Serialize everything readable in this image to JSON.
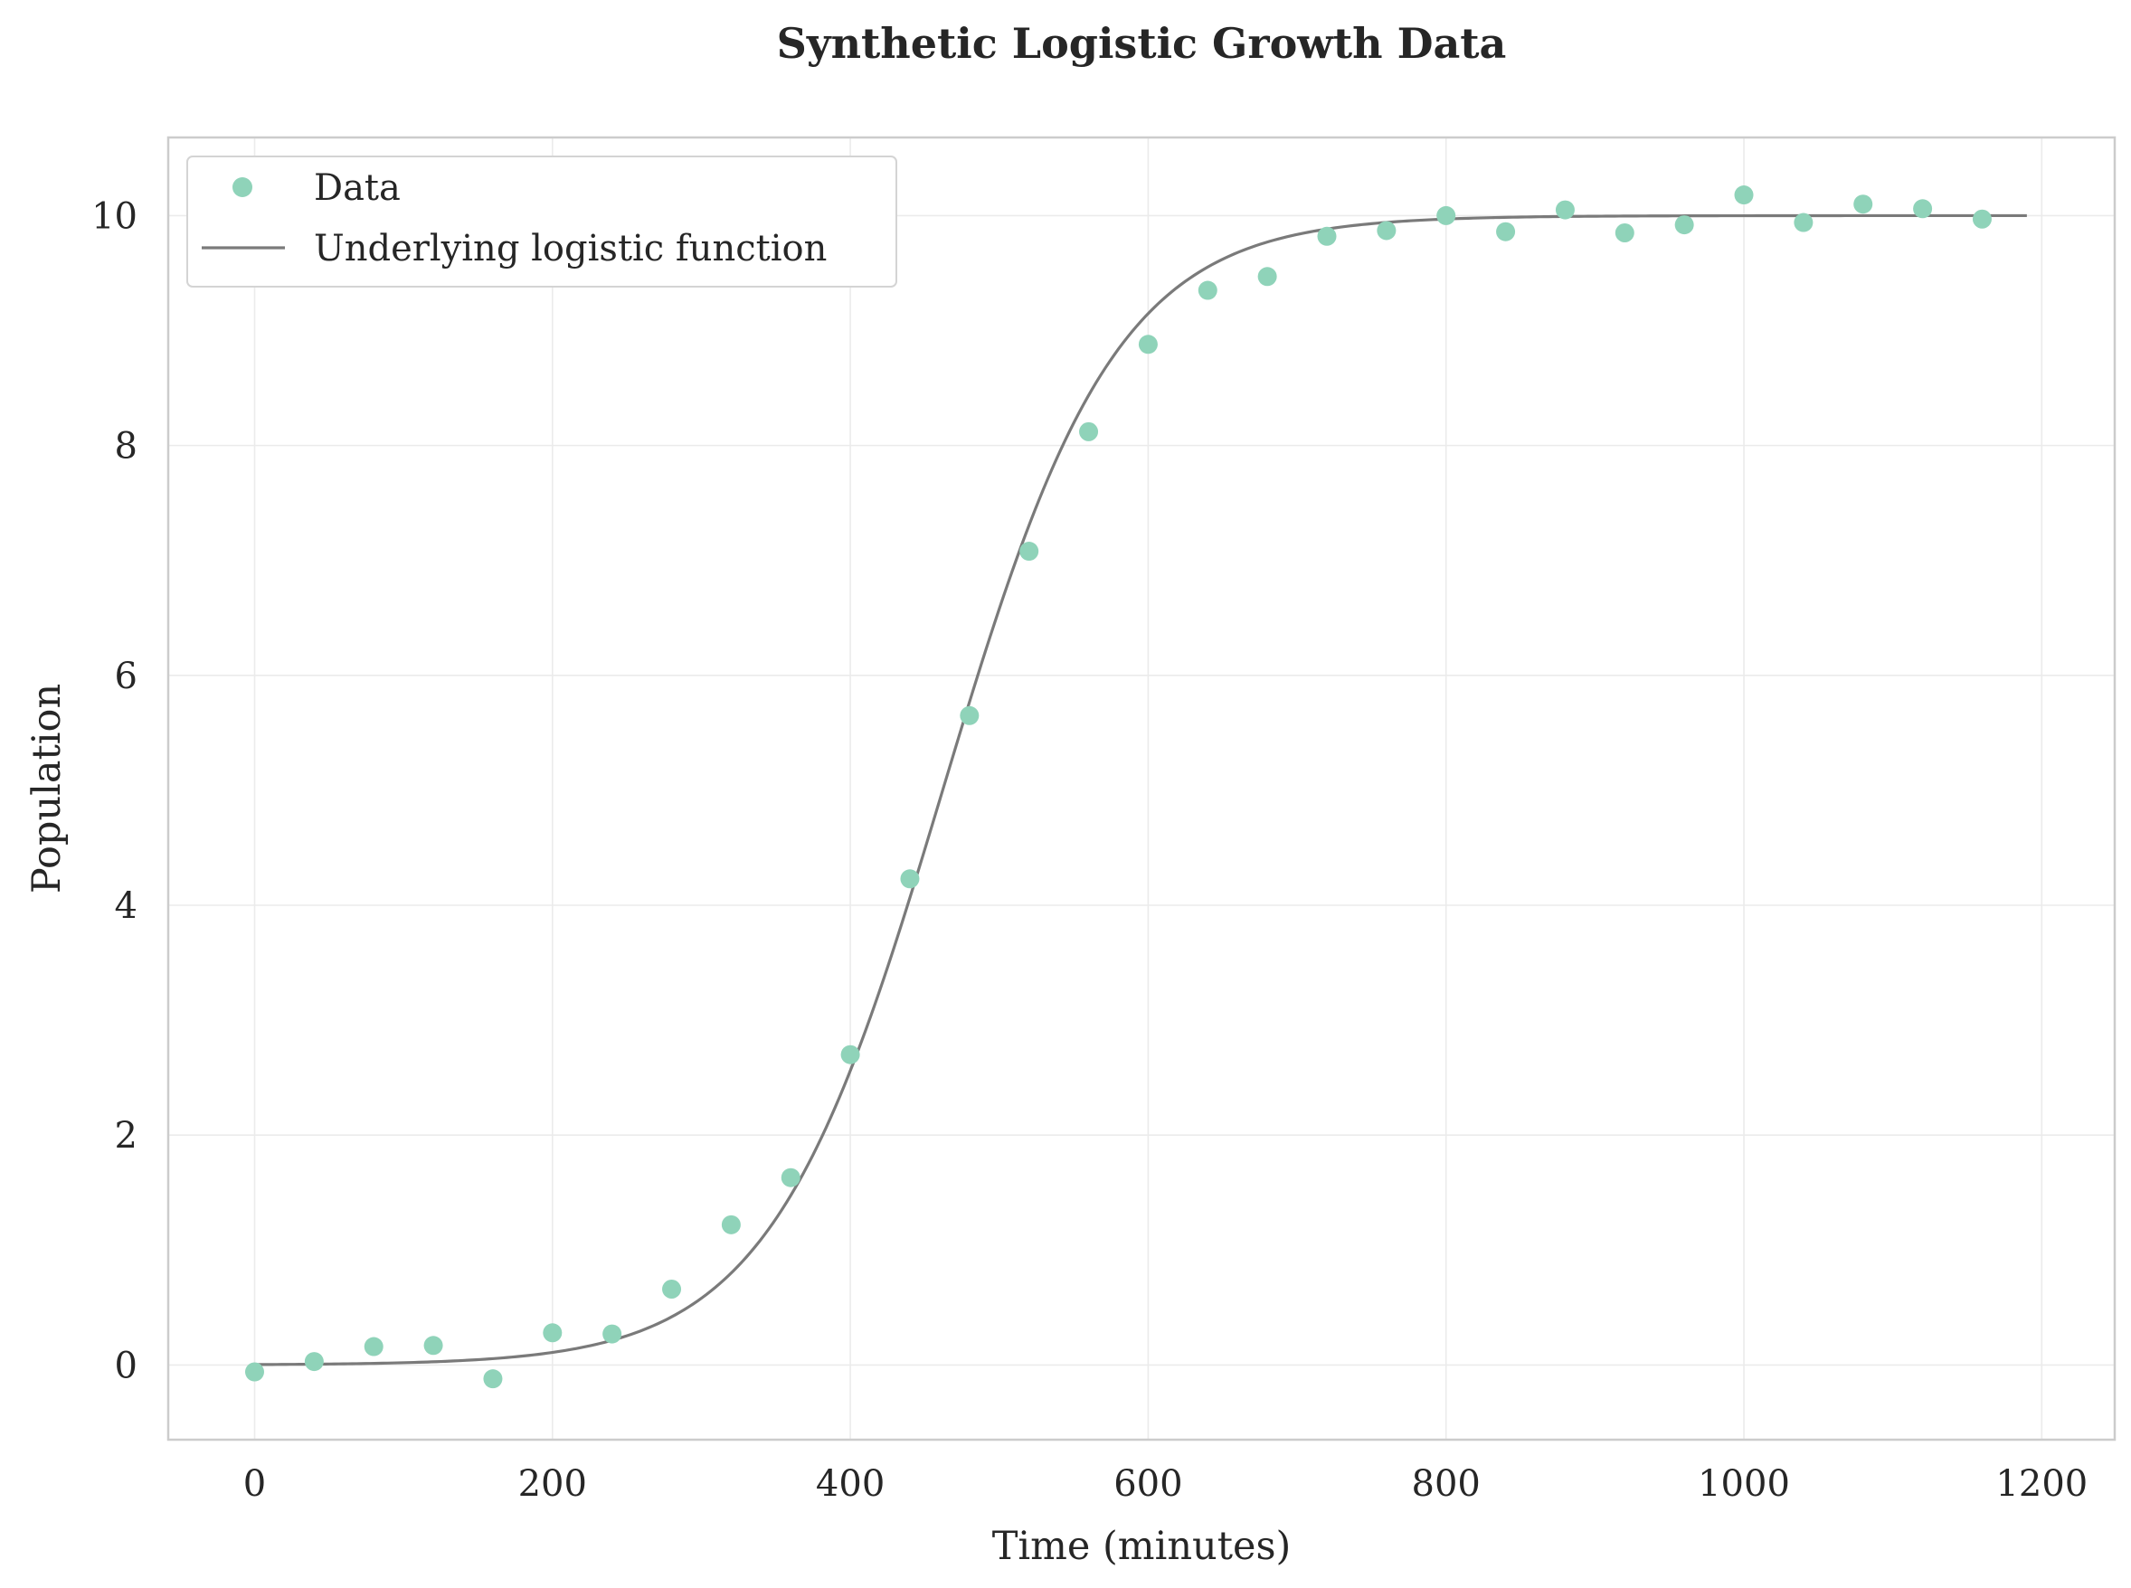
{
  "chart_data": {
    "type": "scatter",
    "title": "Synthetic Logistic Growth Data",
    "xlabel": "Time (minutes)",
    "ylabel": "Population",
    "xlim": [
      -58,
      1249
    ],
    "ylim": [
      -0.65,
      10.68
    ],
    "xticks": [
      0,
      200,
      400,
      600,
      800,
      1000,
      1200
    ],
    "yticks": [
      0,
      2,
      4,
      6,
      8,
      10
    ],
    "grid": true,
    "legend_position": "top-left",
    "colors": {
      "data": "#8fd3b9",
      "curve": "#7a7a7a",
      "grid": "#ebebeb",
      "spine": "#cccccc"
    },
    "series": [
      {
        "name": "Data",
        "kind": "markers",
        "x": [
          0,
          40,
          80,
          120,
          160,
          200,
          240,
          280,
          320,
          360,
          400,
          440,
          480,
          520,
          560,
          600,
          640,
          680,
          720,
          760,
          800,
          840,
          880,
          920,
          960,
          1000,
          1040,
          1080,
          1120,
          1160
        ],
        "y": [
          -0.06,
          0.03,
          0.16,
          0.17,
          -0.12,
          0.28,
          0.27,
          0.66,
          1.22,
          1.63,
          2.7,
          4.23,
          5.65,
          7.08,
          8.12,
          8.88,
          9.35,
          9.47,
          9.82,
          9.87,
          10.0,
          9.86,
          10.05,
          9.85,
          9.92,
          10.18,
          9.94,
          10.1,
          10.06,
          9.97
        ]
      },
      {
        "name": "Underlying logistic function",
        "kind": "line",
        "function": "logistic",
        "K": 10,
        "r": 0.0172,
        "t0": 462,
        "x_range": [
          0,
          1190
        ]
      }
    ]
  }
}
